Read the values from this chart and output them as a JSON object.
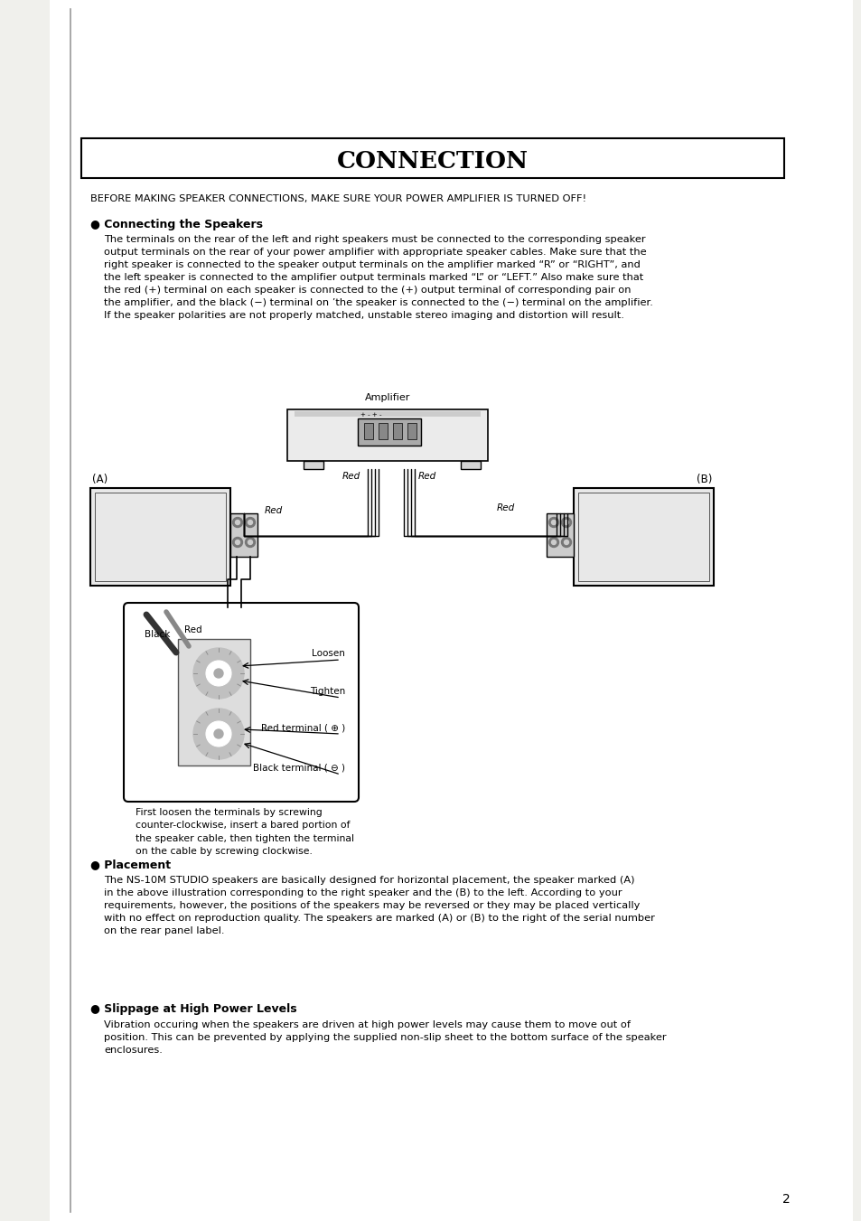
{
  "bg_color": "#ffffff",
  "page_bg": "#f0f0ec",
  "title": "CONNECTION",
  "warning_text": "BEFORE MAKING SPEAKER CONNECTIONS, MAKE SURE YOUR POWER AMPLIFIER IS TURNED OFF!",
  "section1_header": "● Connecting the Speakers",
  "section1_body": "The terminals on the rear of the left and right speakers must be connected to the corresponding speaker\noutput terminals on the rear of your power amplifier with appropriate speaker cables. Make sure that the\nright speaker is connected to the speaker output terminals on the amplifier marked “R” or “RIGHT”, and\nthe left speaker is connected to the amplifier output terminals marked “L” or “LEFT.” Also make sure that\nthe red (+) terminal on each speaker is connected to the (+) output terminal of corresponding pair on\nthe amplifier, and the black (−) terminal on ’the speaker is connected to the (−) terminal on the amplifier.\nIf the speaker polarities are not properly matched, unstable stereo imaging and distortion will result.",
  "amp_label": "Amplifier",
  "label_A": "(A)",
  "label_B": "(B)",
  "red_label": "Red",
  "black_label": "Black",
  "loosen_label": "Loosen",
  "tighten_label": "Tighten",
  "red_terminal_label": "Red terminal ( ⊕ )",
  "black_terminal_label": "Black terminal ( ⊖ )",
  "inset_caption": "First loosen the terminals by screwing\ncounter-clockwise, insert a bared portion of\nthe speaker cable, then tighten the terminal\non the cable by screwing clockwise.",
  "section2_header": "● Placement",
  "section2_body": "The NS-10M STUDIO speakers are basically designed for horizontal placement, the speaker marked (A)\nin the above illustration corresponding to the right speaker and the (B) to the left. According to your\nrequirements, however, the positions of the speakers may be reversed or they may be placed vertically\nwith no effect on reproduction quality. The speakers are marked (A) or (B) to the right of the serial number\non the rear panel label.",
  "section3_header": "● Slippage at High Power Levels",
  "section3_body": "Vibration occuring when the speakers are driven at high power levels may cause them to move out of\nposition. This can be prevented by applying the supplied non-slip sheet to the bottom surface of the speaker\nenclosures.",
  "page_number": "2"
}
